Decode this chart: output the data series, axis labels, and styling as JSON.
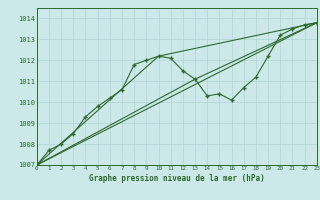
{
  "xlabel": "Graphe pression niveau de la mer (hPa)",
  "ylim": [
    1007,
    1014.5
  ],
  "xlim": [
    0,
    23
  ],
  "yticks": [
    1007,
    1008,
    1009,
    1010,
    1011,
    1012,
    1013,
    1014
  ],
  "xticks": [
    0,
    1,
    2,
    3,
    4,
    5,
    6,
    7,
    8,
    9,
    10,
    11,
    12,
    13,
    14,
    15,
    16,
    17,
    18,
    19,
    20,
    21,
    22,
    23
  ],
  "bg_color": "#cce8e8",
  "grid_color": "#b0d4d4",
  "line_color": "#2d6a2d",
  "text_color": "#2d6a2d",
  "line1_x": [
    0,
    1,
    2,
    3,
    4,
    5,
    6,
    7,
    8,
    9,
    10,
    11,
    12,
    13,
    14,
    15,
    16,
    17,
    18,
    19,
    20,
    21,
    22,
    23
  ],
  "line1_y": [
    1007.0,
    1007.7,
    1008.0,
    1008.5,
    1009.3,
    1009.8,
    1010.2,
    1010.6,
    1011.8,
    1012.0,
    1012.2,
    1012.1,
    1011.5,
    1011.1,
    1010.3,
    1010.4,
    1010.1,
    1010.7,
    1011.2,
    1012.2,
    1013.2,
    1013.5,
    1013.7,
    1013.8
  ],
  "line2_x": [
    0,
    23
  ],
  "line2_y": [
    1007.0,
    1013.8
  ],
  "line3_x": [
    0,
    13,
    23
  ],
  "line3_y": [
    1007.0,
    1011.1,
    1013.8
  ],
  "line4_x": [
    0,
    10,
    23
  ],
  "line4_y": [
    1007.0,
    1012.2,
    1013.8
  ]
}
